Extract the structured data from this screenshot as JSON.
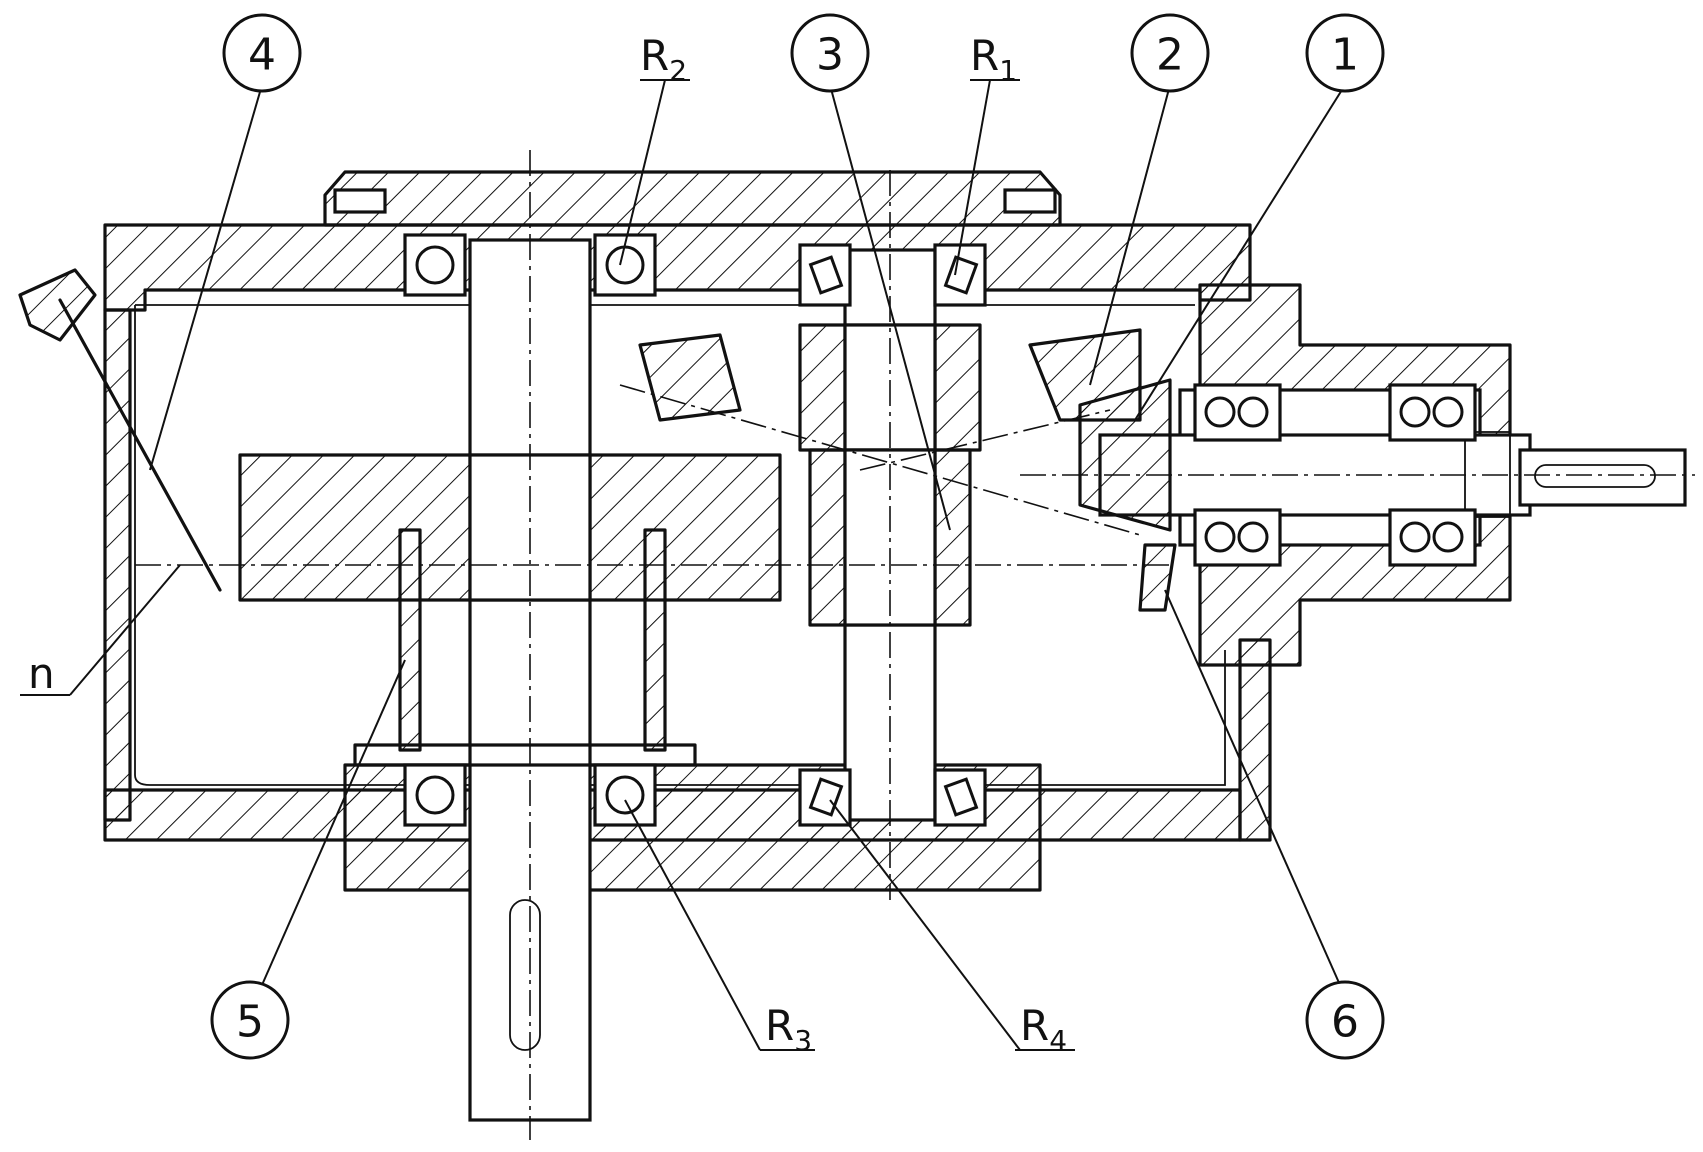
{
  "callouts": {
    "c1": "1",
    "c2": "2",
    "c3": "3",
    "c4": "4",
    "c5": "5",
    "c6": "6"
  },
  "labels": {
    "R1": {
      "main": "R",
      "sub": "1"
    },
    "R2": {
      "main": "R",
      "sub": "2"
    },
    "R3": {
      "main": "R",
      "sub": "3"
    },
    "R4": {
      "main": "R",
      "sub": "4"
    },
    "n": {
      "main": "n"
    }
  },
  "colors": {
    "ink": "#111111",
    "paper": "#ffffff"
  }
}
